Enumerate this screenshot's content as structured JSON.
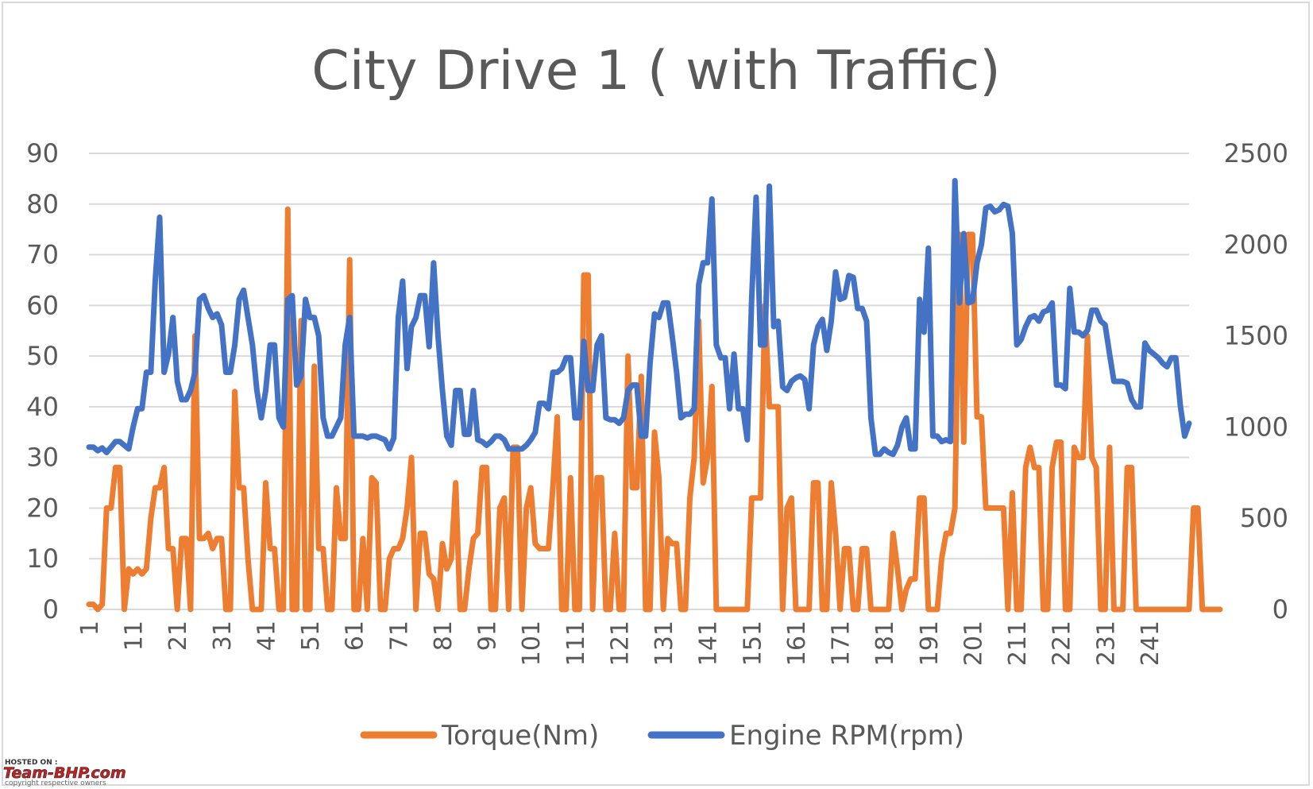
{
  "chart_data": {
    "type": "line",
    "title": "City Drive 1 ( with Traffic)",
    "xlabel": "",
    "ylabel": "",
    "x_tick_labels": [
      "1",
      "11",
      "21",
      "31",
      "41",
      "51",
      "61",
      "71",
      "81",
      "91",
      "101",
      "111",
      "121",
      "131",
      "141",
      "151",
      "161",
      "171",
      "181",
      "191",
      "201",
      "211",
      "221",
      "231",
      "241"
    ],
    "y_left_ticks": [
      "0",
      "10",
      "20",
      "30",
      "40",
      "50",
      "60",
      "70",
      "80",
      "90"
    ],
    "y_right_ticks": [
      "0",
      "500",
      "1000",
      "1500",
      "2000",
      "2500"
    ],
    "ylim_left": [
      0,
      90
    ],
    "ylim_right": [
      0,
      2500
    ],
    "xlim": [
      1,
      250
    ],
    "grid": true,
    "legend_position": "bottom",
    "series": [
      {
        "name": "Torque(Nm)",
        "axis": "left",
        "color": "#ED7D31",
        "values": [
          1,
          1,
          0,
          1,
          20,
          20,
          28,
          28,
          0,
          8,
          7,
          8,
          7,
          8,
          18,
          24,
          24,
          28,
          12,
          12,
          0,
          14,
          14,
          0,
          54,
          14,
          14,
          15,
          12,
          14,
          14,
          0,
          0,
          43,
          24,
          24,
          10,
          0,
          0,
          0,
          25,
          12,
          12,
          0,
          0,
          79,
          0,
          0,
          57,
          0,
          0,
          48,
          12,
          12,
          0,
          0,
          24,
          14,
          14,
          69,
          0,
          0,
          14,
          0,
          26,
          25,
          0,
          0,
          10,
          12,
          12,
          14,
          20,
          30,
          0,
          15,
          15,
          7,
          6,
          0,
          13,
          8,
          10,
          25,
          0,
          0,
          8,
          14,
          15,
          28,
          28,
          0,
          0,
          20,
          22,
          0,
          32,
          32,
          0,
          20,
          24,
          13,
          12,
          12,
          12,
          24,
          38,
          0,
          0,
          26,
          0,
          0,
          66,
          66,
          0,
          26,
          26,
          0,
          0,
          15,
          0,
          0,
          50,
          24,
          24,
          46,
          0,
          0,
          35,
          26,
          0,
          14,
          13,
          13,
          0,
          0,
          22,
          30,
          57,
          25,
          30,
          44,
          0,
          0,
          0,
          0,
          0,
          0,
          0,
          0,
          22,
          22,
          22,
          60,
          40,
          40,
          40,
          0,
          20,
          22,
          0,
          0,
          0,
          0,
          25,
          25,
          0,
          0,
          25,
          15,
          0,
          12,
          12,
          0,
          0,
          12,
          12,
          0,
          0,
          0,
          0,
          0,
          15,
          8,
          0,
          4,
          6,
          6,
          22,
          22,
          0,
          0,
          0,
          10,
          15,
          15,
          20,
          74,
          33,
          74,
          74,
          38,
          38,
          20,
          20,
          20,
          20,
          20,
          0,
          23,
          0,
          0,
          28,
          32,
          28,
          28,
          0,
          0,
          28,
          33,
          33,
          0,
          0,
          32,
          30,
          30,
          54,
          30,
          28,
          0,
          0,
          32,
          0,
          0,
          0,
          28,
          28,
          0,
          0,
          0,
          0,
          0,
          0,
          0,
          0,
          0,
          0,
          0,
          0,
          0,
          20,
          20,
          0,
          0,
          0,
          0,
          0
        ]
      },
      {
        "name": "Engine RPM(rpm)",
        "axis": "right",
        "color": "#4472C4",
        "values": [
          890,
          890,
          870,
          885,
          860,
          890,
          920,
          920,
          900,
          880,
          1000,
          1100,
          1100,
          1300,
          1300,
          1800,
          2150,
          1300,
          1400,
          1600,
          1250,
          1150,
          1150,
          1200,
          1300,
          1700,
          1720,
          1650,
          1600,
          1620,
          1560,
          1300,
          1300,
          1450,
          1700,
          1750,
          1600,
          1450,
          1200,
          1050,
          1200,
          1450,
          1450,
          1050,
          1000,
          1700,
          1720,
          1230,
          1280,
          1700,
          1600,
          1600,
          1500,
          1050,
          950,
          950,
          1000,
          1050,
          1450,
          1600,
          950,
          950,
          950,
          940,
          950,
          950,
          940,
          930,
          880,
          940,
          1600,
          1800,
          1320,
          1550,
          1600,
          1720,
          1720,
          1440,
          1900,
          1500,
          1200,
          950,
          900,
          1200,
          1200,
          960,
          960,
          1200,
          930,
          920,
          900,
          920,
          950,
          950,
          930,
          880,
          880,
          880,
          880,
          900,
          930,
          970,
          1130,
          1130,
          1100,
          1300,
          1300,
          1320,
          1380,
          1380,
          1050,
          1050,
          1470,
          1200,
          1200,
          1450,
          1500,
          1050,
          1040,
          1040,
          1020,
          1050,
          1200,
          1230,
          1230,
          950,
          950,
          1350,
          1620,
          1600,
          1680,
          1680,
          1500,
          1300,
          1050,
          1070,
          1070,
          1100,
          1780,
          1900,
          1900,
          2250,
          1450,
          1380,
          1380,
          1100,
          1400,
          1100,
          1100,
          930,
          1700,
          2260,
          1450,
          1450,
          2320,
          1550,
          1580,
          1220,
          1200,
          1250,
          1270,
          1280,
          1260,
          1100,
          1450,
          1550,
          1590,
          1420,
          1580,
          1850,
          1700,
          1710,
          1830,
          1820,
          1650,
          1650,
          1580,
          1050,
          850,
          850,
          880,
          860,
          850,
          900,
          1000,
          1050,
          880,
          880,
          1700,
          1520,
          1980,
          950,
          950,
          920,
          930,
          920,
          2350,
          1680,
          2060,
          1680,
          1690,
          1900,
          2000,
          2200,
          2210,
          2180,
          2190,
          2220,
          2210,
          2060,
          1450,
          1480,
          1550,
          1600,
          1610,
          1580,
          1630,
          1640,
          1680,
          1230,
          1230,
          1210,
          1760,
          1520,
          1520,
          1500,
          1530,
          1640,
          1640,
          1580,
          1560,
          1400,
          1250,
          1250,
          1250,
          1240,
          1150,
          1110,
          1110,
          1460,
          1420,
          1400,
          1380,
          1350,
          1330,
          1380,
          1380,
          1120,
          950,
          1020
        ]
      }
    ]
  },
  "watermark": {
    "hosted": "HOSTED ON :",
    "brand": "Team-BHP.com",
    "copyright": "copyright respective owners"
  }
}
